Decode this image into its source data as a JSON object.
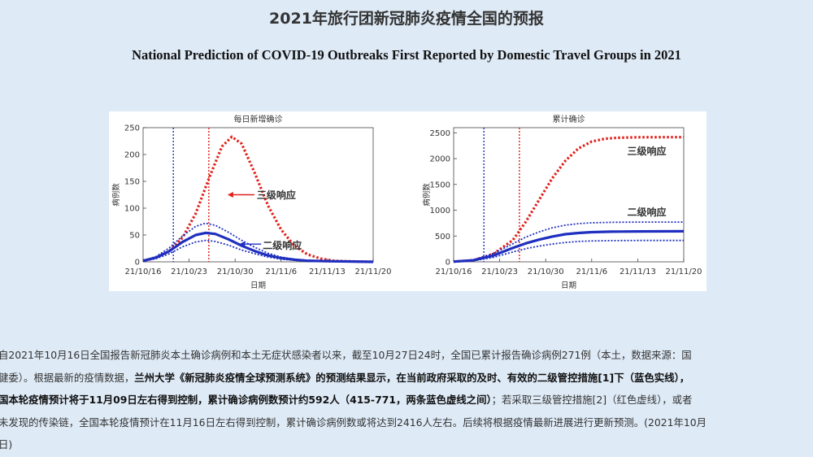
{
  "page": {
    "title_cn": "2021年旅行团新冠肺炎疫情全国的预报",
    "title_en": "National Prediction of COVID-19 Outbreaks First Reported by Domestic Travel Groups in 2021"
  },
  "chart_data": [
    {
      "type": "line",
      "title": "每日新增确诊",
      "xlabel": "日期",
      "ylabel": "病例数",
      "x_ticks": [
        "21/10/16",
        "21/10/23",
        "21/10/30",
        "21/11/6",
        "21/11/13",
        "21/11/20"
      ],
      "y_ticks": [
        "0",
        "50",
        "100",
        "150",
        "200",
        "250"
      ],
      "ylim": [
        0,
        250
      ],
      "xlim_days": [
        0,
        35
      ],
      "vlines": [
        {
          "day": 4.6,
          "color": "#1f2fbf",
          "style": "dotted"
        },
        {
          "day": 10,
          "color": "#e0201a",
          "style": "dotted"
        }
      ],
      "series": [
        {
          "name": "三级响应",
          "color": "#e0201a",
          "style": "dotted",
          "x": [
            0,
            2,
            4,
            6,
            8,
            10,
            12,
            13.5,
            15,
            17,
            19,
            21,
            23,
            25,
            27,
            29,
            31,
            35
          ],
          "y": [
            2,
            8,
            20,
            45,
            90,
            155,
            215,
            233,
            220,
            165,
            105,
            60,
            30,
            14,
            6,
            2,
            1,
            0
          ]
        },
        {
          "name": "二级响应",
          "color": "#1f2fbf",
          "style": "solid",
          "x": [
            0,
            2,
            4,
            6,
            8,
            9.5,
            11,
            13,
            15,
            17,
            19,
            21,
            23,
            25,
            29,
            35
          ],
          "y": [
            2,
            8,
            20,
            37,
            50,
            54,
            52,
            42,
            30,
            20,
            12,
            7,
            4,
            2,
            1,
            0
          ]
        },
        {
          "name": "",
          "color": "#1f2fbf",
          "style": "dotted",
          "x": [
            0,
            2,
            4,
            6,
            8,
            9.5,
            11,
            13,
            15,
            17,
            19,
            21,
            23,
            25,
            29,
            35
          ],
          "y": [
            2,
            10,
            26,
            48,
            66,
            72,
            68,
            55,
            40,
            27,
            16,
            9,
            5,
            3,
            1,
            0
          ]
        },
        {
          "name": "",
          "color": "#1f2fbf",
          "style": "dotted",
          "x": [
            0,
            2,
            4,
            6,
            8,
            9.5,
            11,
            13,
            15,
            17,
            19,
            21,
            23,
            25,
            29,
            35
          ],
          "y": [
            1,
            6,
            15,
            28,
            37,
            40,
            38,
            31,
            22,
            15,
            9,
            5,
            3,
            1,
            0,
            0
          ]
        }
      ],
      "annotations": [
        {
          "text": "三级响应",
          "color": "#e0201a",
          "arrow_to_day": 12.6,
          "arrow_to_value": 125
        },
        {
          "text": "二级响应",
          "color": "#1f2fbf",
          "arrow_to_day": 14.5,
          "arrow_to_value": 33
        }
      ]
    },
    {
      "type": "line",
      "title": "累计确诊",
      "xlabel": "日期",
      "ylabel": "病例数",
      "x_ticks": [
        "21/10/16",
        "21/10/23",
        "21/10/30",
        "21/11/6",
        "21/11/13",
        "21/11/20"
      ],
      "y_ticks": [
        "0",
        "500",
        "1000",
        "1500",
        "2000",
        "2500"
      ],
      "ylim": [
        0,
        2600
      ],
      "xlim_days": [
        0,
        35
      ],
      "vlines": [
        {
          "day": 4.6,
          "color": "#1f2fbf",
          "style": "dotted"
        },
        {
          "day": 10,
          "color": "#e0201a",
          "style": "dotted"
        }
      ],
      "series": [
        {
          "name": "三级响应",
          "color": "#e0201a",
          "style": "dotted",
          "x": [
            0,
            3,
            6,
            9,
            11,
            13,
            15,
            17,
            19,
            21,
            23,
            25,
            28,
            31,
            35
          ],
          "y": [
            5,
            30,
            150,
            420,
            780,
            1200,
            1620,
            1960,
            2200,
            2330,
            2385,
            2405,
            2414,
            2416,
            2416
          ]
        },
        {
          "name": "二级响应",
          "color": "#1f2fbf",
          "style": "solid",
          "x": [
            0,
            3,
            6,
            9,
            11,
            13,
            15,
            17,
            19,
            21,
            24,
            28,
            35
          ],
          "y": [
            5,
            30,
            120,
            270,
            360,
            430,
            490,
            535,
            560,
            575,
            585,
            590,
            592
          ]
        },
        {
          "name": "",
          "color": "#1f2fbf",
          "style": "dotted",
          "x": [
            0,
            3,
            6,
            9,
            11,
            13,
            15,
            17,
            19,
            21,
            24,
            28,
            35
          ],
          "y": [
            5,
            40,
            160,
            350,
            480,
            580,
            660,
            710,
            740,
            757,
            766,
            770,
            771
          ]
        },
        {
          "name": "",
          "color": "#1f2fbf",
          "style": "dotted",
          "x": [
            0,
            3,
            6,
            9,
            11,
            13,
            15,
            17,
            19,
            21,
            24,
            28,
            35
          ],
          "y": [
            3,
            20,
            85,
            190,
            255,
            305,
            345,
            375,
            395,
            405,
            412,
            414,
            415
          ]
        }
      ],
      "annotations": [
        {
          "text": "三级响应",
          "color": "#e0201a"
        },
        {
          "text": "二级响应",
          "color": "#1f2fbf"
        }
      ]
    }
  ],
  "paragraph": {
    "l1": "自2021年10月16日全国报告新冠肺炎本土确诊病例和本土无症状感染者以来，截至10月27日24时，全国已累计报告确诊病例271例（本土，数据来源：国",
    "l2a": "健委）。根据最新的疫情数据，",
    "l2b": "兰州大学《新冠肺炎疫情全球预测系统》的预测结果显示，在当前政府采取的及时、有效的二级管控措施[1]下（蓝色实线），",
    "l3a": "国本轮疫情预计将于11月09日左右得到控制，累计确诊病例数预计约592人（415-771，两条蓝色虚线之间）",
    "l3b": "；若采取三级管控措施[2]（红色虚线），或者",
    "l4": "未发现的传染链，全国本轮疫情预计在11月16日左右得到控制，累计确诊病例数或将达到2416人左右。后续将根据疫情最新进展进行更新预测。(2021年10月",
    "l5": "日)"
  }
}
